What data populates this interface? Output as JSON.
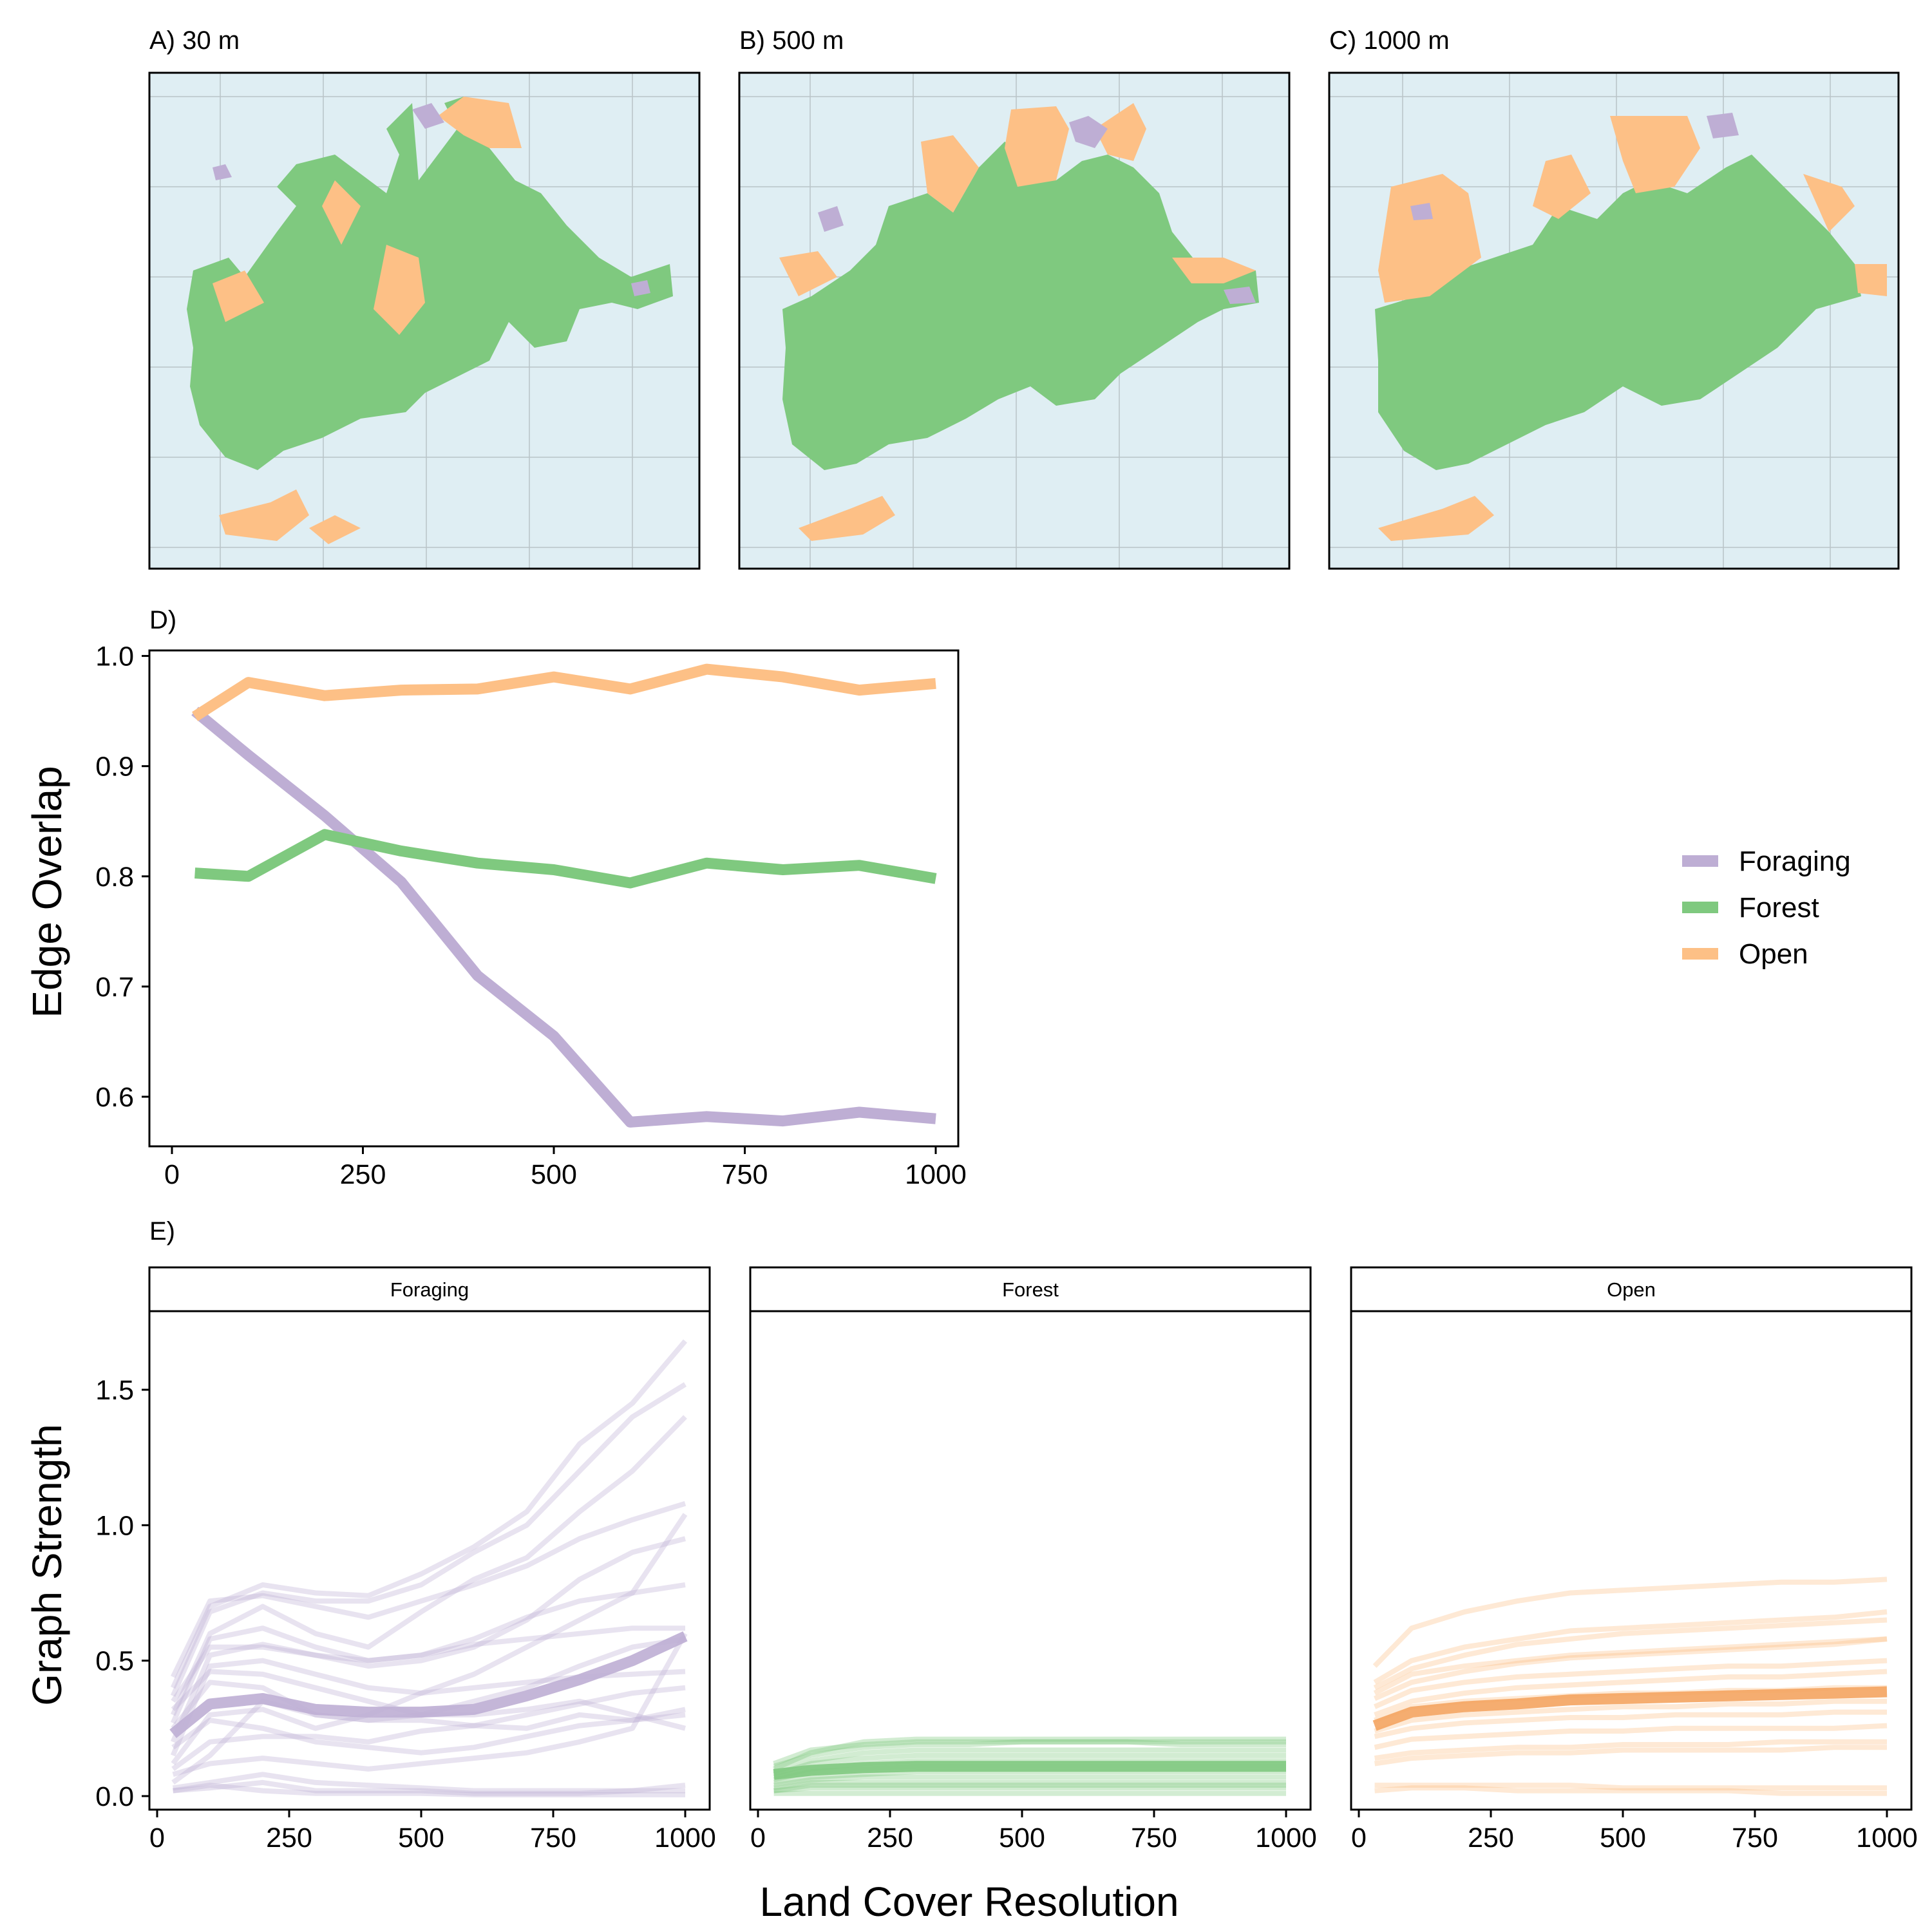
{
  "colors": {
    "foraging": "#beaed4",
    "forest": "#7fc97f",
    "open": "#fdc086",
    "water": "#dfeef3",
    "grid": "#b9c3c7",
    "fg_open": "#f4a460"
  },
  "maps": {
    "panels": [
      {
        "title": "A) 30 m",
        "resolution": 30
      },
      {
        "title": "B) 500 m",
        "resolution": 500
      },
      {
        "title": "C) 1000 m",
        "resolution": 1000
      }
    ]
  },
  "panel_d": {
    "title": "D)",
    "ylabel": "Edge Overlap"
  },
  "panel_e": {
    "title": "E)",
    "ylabel": "Graph Strength",
    "xlabel": "Land Cover Resolution",
    "facets": [
      "Foraging",
      "Forest",
      "Open"
    ]
  },
  "legend": {
    "entries": [
      "Foraging",
      "Forest",
      "Open"
    ]
  },
  "chart_data": [
    {
      "panel": "D)",
      "type": "line",
      "x": [
        30,
        100,
        200,
        300,
        400,
        500,
        600,
        700,
        800,
        900,
        1000
      ],
      "xlim": [
        0,
        1000
      ],
      "ylim": [
        0.555,
        1.005
      ],
      "xticks": [
        0,
        250,
        500,
        750,
        1000
      ],
      "yticks": [
        0.6,
        0.7,
        0.8,
        0.9,
        1.0
      ],
      "ylabel": "Edge Overlap",
      "legend_position": "right",
      "grid": false,
      "series": [
        {
          "name": "Foraging",
          "values": [
            0.95,
            0.91,
            0.855,
            0.795,
            0.71,
            0.655,
            0.577,
            0.582,
            0.578,
            0.586,
            0.58
          ]
        },
        {
          "name": "Forest",
          "values": [
            0.803,
            0.8,
            0.838,
            0.823,
            0.812,
            0.806,
            0.794,
            0.812,
            0.806,
            0.81,
            0.798
          ]
        },
        {
          "name": "Open",
          "values": [
            0.945,
            0.976,
            0.964,
            0.969,
            0.97,
            0.981,
            0.97,
            0.988,
            0.981,
            0.969,
            0.975
          ]
        }
      ]
    },
    {
      "panel": "E)",
      "type": "line",
      "x": [
        30,
        100,
        200,
        300,
        400,
        500,
        600,
        700,
        800,
        900,
        1000
      ],
      "xlim": [
        0,
        1000
      ],
      "ylim": [
        -0.05,
        1.79
      ],
      "xticks": [
        0,
        250,
        500,
        750,
        1000
      ],
      "yticks": [
        0.0,
        0.5,
        1.0,
        1.5
      ],
      "ylabel": "Graph Strength",
      "xlabel": "Land Cover Resolution",
      "grid": false,
      "facets": [
        {
          "label": "Foraging",
          "mean": [
            0.23,
            0.34,
            0.36,
            0.32,
            0.31,
            0.31,
            0.32,
            0.37,
            0.43,
            0.5,
            0.59
          ],
          "individuals": [
            [
              0.4,
              0.7,
              0.78,
              0.75,
              0.74,
              0.82,
              0.92,
              1.05,
              1.3,
              1.45,
              1.68
            ],
            [
              0.37,
              0.68,
              0.75,
              0.72,
              0.72,
              0.78,
              0.9,
              1.0,
              1.2,
              1.4,
              1.52
            ],
            [
              0.3,
              0.6,
              0.7,
              0.6,
              0.55,
              0.68,
              0.8,
              0.88,
              1.05,
              1.2,
              1.4
            ],
            [
              0.44,
              0.72,
              0.74,
              0.7,
              0.66,
              0.72,
              0.78,
              0.85,
              0.95,
              1.02,
              1.08
            ],
            [
              0.2,
              0.52,
              0.56,
              0.52,
              0.48,
              0.5,
              0.55,
              0.65,
              0.8,
              0.9,
              0.95
            ],
            [
              0.27,
              0.58,
              0.62,
              0.55,
              0.5,
              0.52,
              0.58,
              0.66,
              0.72,
              0.75,
              0.78
            ],
            [
              0.35,
              0.55,
              0.55,
              0.52,
              0.5,
              0.52,
              0.56,
              0.58,
              0.6,
              0.62,
              0.62
            ],
            [
              0.12,
              0.3,
              0.32,
              0.25,
              0.3,
              0.38,
              0.45,
              0.55,
              0.65,
              0.75,
              1.04
            ],
            [
              0.15,
              0.48,
              0.5,
              0.45,
              0.4,
              0.38,
              0.4,
              0.42,
              0.44,
              0.45,
              0.46
            ],
            [
              0.32,
              0.46,
              0.45,
              0.4,
              0.35,
              0.3,
              0.3,
              0.32,
              0.35,
              0.3,
              0.25
            ],
            [
              0.25,
              0.42,
              0.4,
              0.3,
              0.28,
              0.28,
              0.26,
              0.25,
              0.3,
              0.28,
              0.32
            ],
            [
              0.1,
              0.2,
              0.22,
              0.22,
              0.2,
              0.24,
              0.26,
              0.3,
              0.34,
              0.38,
              0.4
            ],
            [
              0.18,
              0.28,
              0.25,
              0.2,
              0.18,
              0.16,
              0.18,
              0.22,
              0.26,
              0.28,
              0.3
            ],
            [
              0.08,
              0.12,
              0.14,
              0.12,
              0.1,
              0.12,
              0.14,
              0.16,
              0.2,
              0.25,
              0.6
            ],
            [
              0.03,
              0.05,
              0.08,
              0.05,
              0.04,
              0.03,
              0.02,
              0.02,
              0.02,
              0.02,
              0.02
            ],
            [
              0.02,
              0.04,
              0.02,
              0.01,
              0.01,
              0.01,
              0.005,
              0.005,
              0.005,
              0.005,
              0.005
            ],
            [
              0.02,
              0.03,
              0.05,
              0.02,
              0.02,
              0.02,
              0.01,
              0.01,
              0.01,
              0.02,
              0.04
            ],
            [
              0.05,
              0.15,
              0.35,
              0.3,
              0.28,
              0.3,
              0.35,
              0.4,
              0.48,
              0.55,
              0.58
            ]
          ]
        },
        {
          "label": "Forest",
          "mean": [
            0.08,
            0.095,
            0.105,
            0.11,
            0.11,
            0.11,
            0.11,
            0.11,
            0.11,
            0.11,
            0.11
          ],
          "individuals": [
            [
              0.1,
              0.16,
              0.2,
              0.21,
              0.21,
              0.21,
              0.21,
              0.21,
              0.21,
              0.21,
              0.21
            ],
            [
              0.11,
              0.15,
              0.18,
              0.19,
              0.19,
              0.2,
              0.2,
              0.2,
              0.19,
              0.19,
              0.19
            ],
            [
              0.09,
              0.13,
              0.16,
              0.17,
              0.17,
              0.17,
              0.17,
              0.17,
              0.17,
              0.17,
              0.17
            ],
            [
              0.08,
              0.12,
              0.14,
              0.15,
              0.15,
              0.15,
              0.15,
              0.15,
              0.15,
              0.15,
              0.15
            ],
            [
              0.07,
              0.1,
              0.12,
              0.13,
              0.13,
              0.13,
              0.13,
              0.13,
              0.13,
              0.13,
              0.13
            ],
            [
              0.06,
              0.09,
              0.1,
              0.11,
              0.11,
              0.11,
              0.11,
              0.11,
              0.11,
              0.11,
              0.11
            ],
            [
              0.05,
              0.07,
              0.08,
              0.09,
              0.09,
              0.09,
              0.09,
              0.09,
              0.09,
              0.09,
              0.09
            ],
            [
              0.04,
              0.06,
              0.07,
              0.07,
              0.07,
              0.07,
              0.07,
              0.07,
              0.07,
              0.07,
              0.07
            ],
            [
              0.03,
              0.05,
              0.05,
              0.05,
              0.05,
              0.05,
              0.05,
              0.05,
              0.05,
              0.05,
              0.05
            ],
            [
              0.02,
              0.03,
              0.03,
              0.03,
              0.03,
              0.03,
              0.03,
              0.03,
              0.03,
              0.03,
              0.03
            ],
            [
              0.01,
              0.01,
              0.01,
              0.01,
              0.01,
              0.01,
              0.01,
              0.01,
              0.01,
              0.01,
              0.01
            ],
            [
              0.12,
              0.17,
              0.19,
              0.2,
              0.2,
              0.2,
              0.2,
              0.2,
              0.2,
              0.2,
              0.2
            ],
            [
              0.02,
              0.04,
              0.04,
              0.04,
              0.04,
              0.04,
              0.04,
              0.04,
              0.04,
              0.04,
              0.04
            ]
          ]
        },
        {
          "label": "Open",
          "mean": [
            0.26,
            0.31,
            0.33,
            0.34,
            0.355,
            0.36,
            0.365,
            0.37,
            0.375,
            0.38,
            0.385
          ],
          "individuals": [
            [
              0.48,
              0.62,
              0.68,
              0.72,
              0.75,
              0.76,
              0.77,
              0.78,
              0.79,
              0.79,
              0.8
            ],
            [
              0.42,
              0.5,
              0.55,
              0.58,
              0.61,
              0.62,
              0.63,
              0.64,
              0.65,
              0.66,
              0.68
            ],
            [
              0.4,
              0.47,
              0.52,
              0.56,
              0.58,
              0.6,
              0.61,
              0.62,
              0.63,
              0.64,
              0.65
            ],
            [
              0.36,
              0.42,
              0.46,
              0.49,
              0.51,
              0.52,
              0.53,
              0.54,
              0.55,
              0.56,
              0.58
            ],
            [
              0.33,
              0.39,
              0.42,
              0.44,
              0.45,
              0.46,
              0.47,
              0.48,
              0.48,
              0.49,
              0.5
            ],
            [
              0.3,
              0.35,
              0.38,
              0.4,
              0.41,
              0.42,
              0.43,
              0.44,
              0.44,
              0.45,
              0.46
            ],
            [
              0.28,
              0.33,
              0.35,
              0.36,
              0.37,
              0.38,
              0.38,
              0.39,
              0.39,
              0.4,
              0.4
            ],
            [
              0.24,
              0.28,
              0.3,
              0.31,
              0.32,
              0.33,
              0.33,
              0.34,
              0.34,
              0.35,
              0.35
            ],
            [
              0.22,
              0.25,
              0.27,
              0.28,
              0.29,
              0.29,
              0.3,
              0.3,
              0.3,
              0.31,
              0.31
            ],
            [
              0.18,
              0.21,
              0.22,
              0.23,
              0.24,
              0.24,
              0.25,
              0.25,
              0.25,
              0.25,
              0.26
            ],
            [
              0.14,
              0.16,
              0.17,
              0.18,
              0.18,
              0.19,
              0.19,
              0.19,
              0.2,
              0.2,
              0.2
            ],
            [
              0.12,
              0.14,
              0.15,
              0.16,
              0.16,
              0.17,
              0.17,
              0.17,
              0.17,
              0.18,
              0.18
            ],
            [
              0.04,
              0.04,
              0.04,
              0.04,
              0.04,
              0.03,
              0.03,
              0.03,
              0.03,
              0.03,
              0.03
            ],
            [
              0.02,
              0.03,
              0.03,
              0.02,
              0.02,
              0.02,
              0.02,
              0.02,
              0.01,
              0.01,
              0.01
            ],
            [
              0.38,
              0.45,
              0.48,
              0.5,
              0.52,
              0.53,
              0.54,
              0.55,
              0.56,
              0.57,
              0.58
            ]
          ]
        }
      ]
    }
  ]
}
